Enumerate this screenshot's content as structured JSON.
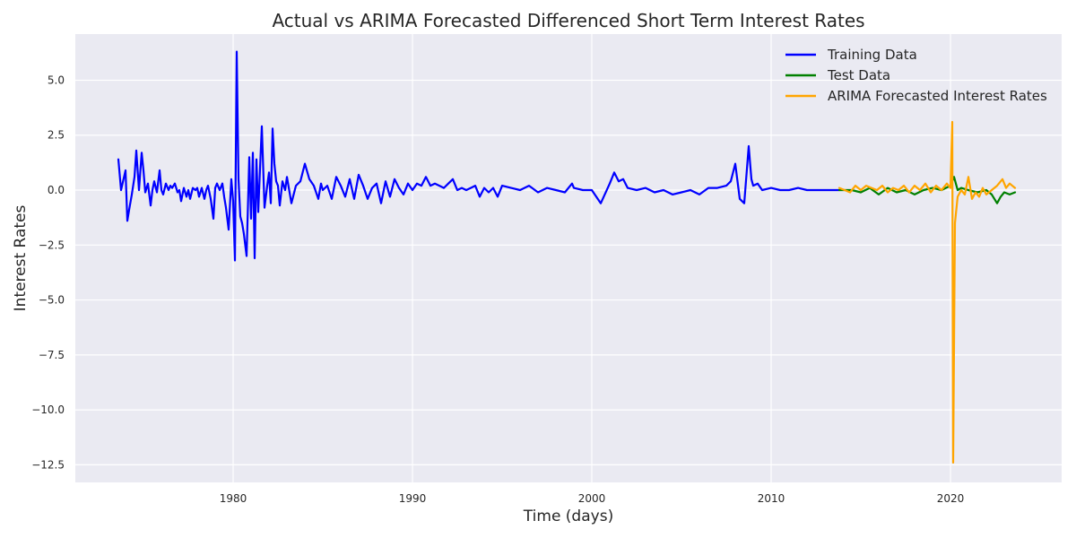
{
  "chart_data": {
    "type": "line",
    "title": "Actual vs ARIMA Forecasted Differenced Short Term Interest Rates",
    "xlabel": "Time (days)",
    "ylabel": "Interest Rates",
    "xlim": [
      1971.2,
      2026.2
    ],
    "ylim": [
      -13.3,
      7.1
    ],
    "xticks": [
      1980,
      1990,
      2000,
      2010,
      2020
    ],
    "xtick_labels": [
      "1980",
      "1990",
      "2000",
      "2010",
      "2020"
    ],
    "yticks": [
      5.0,
      2.5,
      0.0,
      -2.5,
      -5.0,
      -7.5,
      -10.0,
      -12.5
    ],
    "ytick_labels": [
      "5.0",
      "2.5",
      "0.0",
      "−2.5",
      "−5.0",
      "−7.5",
      "−10.0",
      "−12.5"
    ],
    "grid": true,
    "legend_position": "top-right",
    "series": [
      {
        "name": "Training Data",
        "color": "#0000ff",
        "x": [
          1973.6,
          1973.75,
          1974.0,
          1974.1,
          1974.2,
          1974.35,
          1974.5,
          1974.6,
          1974.75,
          1974.9,
          1975.0,
          1975.1,
          1975.25,
          1975.4,
          1975.5,
          1975.6,
          1975.75,
          1975.9,
          1976.0,
          1976.1,
          1976.25,
          1976.4,
          1976.5,
          1976.6,
          1976.75,
          1976.9,
          1977.0,
          1977.1,
          1977.25,
          1977.4,
          1977.5,
          1977.6,
          1977.75,
          1977.9,
          1978.0,
          1978.1,
          1978.25,
          1978.4,
          1978.5,
          1978.6,
          1978.75,
          1978.9,
          1979.0,
          1979.1,
          1979.25,
          1979.4,
          1979.5,
          1979.6,
          1979.75,
          1979.9,
          1980.0,
          1980.1,
          1980.2,
          1980.3,
          1980.4,
          1980.5,
          1980.6,
          1980.75,
          1980.9,
          1981.0,
          1981.1,
          1981.2,
          1981.3,
          1981.4,
          1981.5,
          1981.6,
          1981.75,
          1981.9,
          1982.0,
          1982.1,
          1982.2,
          1982.3,
          1982.4,
          1982.5,
          1982.6,
          1982.75,
          1982.9,
          1983.0,
          1983.25,
          1983.5,
          1983.75,
          1984.0,
          1984.25,
          1984.5,
          1984.75,
          1984.9,
          1985.0,
          1985.25,
          1985.5,
          1985.75,
          1986.0,
          1986.25,
          1986.5,
          1986.75,
          1987.0,
          1987.25,
          1987.5,
          1987.75,
          1988.0,
          1988.25,
          1988.5,
          1988.75,
          1989.0,
          1989.25,
          1989.5,
          1989.75,
          1990.0,
          1990.25,
          1990.5,
          1990.75,
          1991.0,
          1991.25,
          1991.5,
          1991.75,
          1992.0,
          1992.25,
          1992.5,
          1992.75,
          1993.0,
          1993.25,
          1993.5,
          1993.75,
          1994.0,
          1994.25,
          1994.5,
          1994.75,
          1995.0,
          1995.5,
          1996.0,
          1996.5,
          1997.0,
          1997.5,
          1998.0,
          1998.5,
          1998.9,
          1999.0,
          1999.5,
          2000.0,
          2000.5,
          2001.0,
          2001.25,
          2001.5,
          2001.75,
          2002.0,
          2002.5,
          2003.0,
          2003.5,
          2004.0,
          2004.5,
          2005.0,
          2005.5,
          2006.0,
          2006.5,
          2007.0,
          2007.5,
          2007.75,
          2008.0,
          2008.25,
          2008.5,
          2008.75,
          2008.9,
          2009.0,
          2009.25,
          2009.5,
          2010.0,
          2010.5,
          2011.0,
          2011.5,
          2012.0,
          2012.5,
          2013.0,
          2013.5,
          2013.8
        ],
        "values": [
          1.4,
          0.0,
          0.9,
          -1.4,
          -0.9,
          -0.2,
          0.6,
          1.8,
          0.0,
          1.7,
          0.9,
          -0.1,
          0.3,
          -0.7,
          0.0,
          0.4,
          -0.1,
          0.9,
          0.0,
          -0.2,
          0.3,
          0.0,
          0.2,
          0.1,
          0.3,
          -0.1,
          0.0,
          -0.5,
          0.1,
          -0.3,
          0.0,
          -0.4,
          0.1,
          0.0,
          0.1,
          -0.3,
          0.1,
          -0.4,
          0.0,
          0.2,
          -0.4,
          -1.3,
          0.1,
          0.3,
          0.0,
          0.3,
          -0.3,
          -0.8,
          -1.8,
          0.5,
          -0.5,
          -3.2,
          6.3,
          0.5,
          -1.2,
          -1.5,
          -2.0,
          -3.0,
          1.5,
          -1.3,
          1.7,
          -3.1,
          1.4,
          -1.0,
          1.0,
          2.9,
          -0.8,
          0.2,
          0.8,
          -0.6,
          2.8,
          1.2,
          0.4,
          0.2,
          -0.7,
          0.4,
          0.0,
          0.6,
          -0.6,
          0.2,
          0.4,
          1.2,
          0.5,
          0.2,
          -0.4,
          0.3,
          0.0,
          0.2,
          -0.4,
          0.6,
          0.2,
          -0.3,
          0.5,
          -0.4,
          0.7,
          0.2,
          -0.4,
          0.1,
          0.3,
          -0.6,
          0.4,
          -0.3,
          0.5,
          0.1,
          -0.2,
          0.3,
          0.0,
          0.3,
          0.2,
          0.6,
          0.2,
          0.3,
          0.2,
          0.1,
          0.3,
          0.5,
          0.0,
          0.1,
          0.0,
          0.1,
          0.2,
          -0.3,
          0.1,
          -0.1,
          0.1,
          -0.3,
          0.2,
          0.1,
          0.0,
          0.2,
          -0.1,
          0.1,
          0.0,
          -0.1,
          0.3,
          0.1,
          0.0,
          0.0,
          -0.6,
          0.3,
          0.8,
          0.4,
          0.5,
          0.1,
          0.0,
          0.1,
          -0.1,
          0.0,
          -0.2,
          -0.1,
          0.0,
          -0.2,
          0.1,
          0.1,
          0.2,
          0.4,
          1.2,
          -0.4,
          -0.6,
          2.0,
          0.5,
          0.2,
          0.3,
          0.0,
          0.1,
          0.0,
          0.0,
          0.1,
          0.0,
          0.0,
          0.0,
          0.0,
          0.0
        ]
      },
      {
        "name": "Test Data",
        "color": "#008000",
        "x": [
          2013.8,
          2014.5,
          2015.0,
          2015.5,
          2016.0,
          2016.5,
          2017.0,
          2017.5,
          2018.0,
          2018.5,
          2019.0,
          2019.5,
          2020.0,
          2020.2,
          2020.4,
          2020.6,
          2021.0,
          2021.5,
          2022.0,
          2022.3,
          2022.6,
          2022.8,
          2023.0,
          2023.3,
          2023.6
        ],
        "values": [
          0.0,
          0.0,
          -0.1,
          0.1,
          -0.2,
          0.1,
          -0.1,
          0.0,
          -0.2,
          0.0,
          0.1,
          0.0,
          0.2,
          0.6,
          0.0,
          0.1,
          0.0,
          -0.1,
          0.0,
          -0.2,
          -0.6,
          -0.3,
          -0.1,
          -0.2,
          -0.1
        ]
      },
      {
        "name": "ARIMA Forecasted Interest Rates",
        "color": "#ffa500",
        "x": [
          2013.8,
          2014.1,
          2014.4,
          2014.7,
          2015.0,
          2015.3,
          2015.6,
          2015.9,
          2016.2,
          2016.5,
          2016.8,
          2017.1,
          2017.4,
          2017.7,
          2018.0,
          2018.3,
          2018.6,
          2018.9,
          2019.2,
          2019.5,
          2019.8,
          2020.0,
          2020.1,
          2020.15,
          2020.25,
          2020.4,
          2020.6,
          2020.8,
          2021.0,
          2021.2,
          2021.4,
          2021.6,
          2021.8,
          2022.0,
          2022.3,
          2022.6,
          2022.9,
          2023.1,
          2023.3,
          2023.6
        ],
        "values": [
          0.1,
          0.0,
          -0.1,
          0.2,
          0.0,
          0.2,
          0.1,
          0.0,
          0.2,
          -0.1,
          0.1,
          0.0,
          0.2,
          -0.1,
          0.2,
          0.0,
          0.3,
          -0.1,
          0.2,
          0.0,
          0.3,
          0.1,
          3.1,
          -12.4,
          -1.5,
          -0.3,
          0.0,
          -0.2,
          0.6,
          -0.4,
          -0.1,
          -0.3,
          0.1,
          -0.2,
          0.0,
          0.2,
          0.5,
          0.1,
          0.3,
          0.1
        ]
      }
    ]
  }
}
